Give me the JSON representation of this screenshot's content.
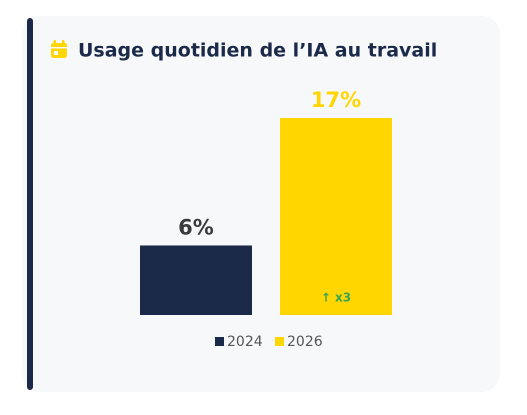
{
  "chart_data": {
    "type": "bar",
    "title": "Usage quotidien de l’IA au travail",
    "series": [
      {
        "name": "2024",
        "color": "#1c2a4a",
        "values": [
          6
        ],
        "value_labels": [
          "6%"
        ],
        "label_color": "#3a3a3a"
      },
      {
        "name": "2026",
        "color": "#ffd600",
        "values": [
          17
        ],
        "value_labels": [
          "17%"
        ],
        "label_color": "#ffd600"
      }
    ],
    "ylim": [
      0,
      17
    ],
    "annotation": "↑ x3",
    "annotation_color": "#3aa655",
    "legend": "bottom"
  }
}
